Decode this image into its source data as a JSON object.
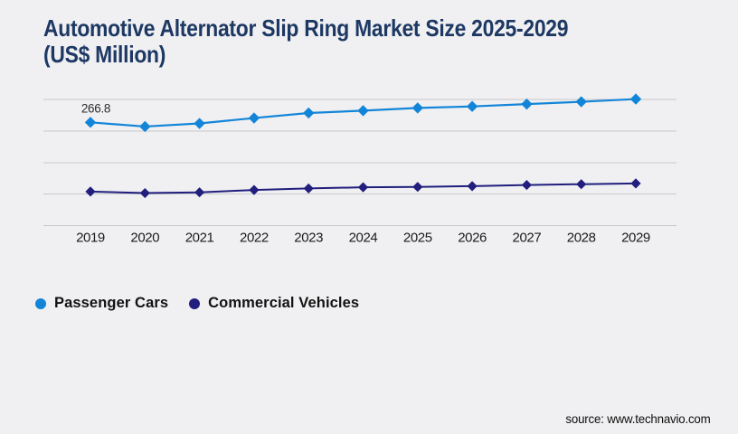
{
  "page": {
    "background_color": "#f0f0f2"
  },
  "header": {
    "title_line1": "Automotive Alternator Slip Ring Market Size 2025-2029",
    "title_line2": "(US$ Million)",
    "title_color": "#1d3863"
  },
  "chart_data": {
    "type": "line",
    "title": "Automotive Alternator Slip Ring Market Size 2025-2029 (US$ Million)",
    "categories": [
      "2019",
      "2020",
      "2021",
      "2022",
      "2023",
      "2024",
      "2025",
      "2026",
      "2027",
      "2028",
      "2029"
    ],
    "series": [
      {
        "name": "Passenger Cars",
        "color": "#1385d8",
        "marker": "diamond",
        "values": [
          266.8,
          256,
          264,
          278,
          291,
          297,
          304,
          308,
          314,
          320,
          327
        ]
      },
      {
        "name": "Commercial Vehicles",
        "color": "#211e7d",
        "marker": "diamond",
        "values": [
          88,
          84,
          86,
          92,
          96,
          99,
          100,
          102,
          105,
          107,
          109
        ]
      }
    ],
    "data_labels": [
      {
        "series": 0,
        "index": 0,
        "text": "266.8"
      }
    ],
    "xlabel": "",
    "ylabel": "",
    "ylim": [
      0,
      340
    ],
    "y_axis_labels_visible": false,
    "grid": {
      "horizontal": true,
      "vertical": false,
      "line_count": 5,
      "color": "#c8c8cb"
    },
    "legend_position": "bottom-left"
  },
  "footer": {
    "source_text": "source: www.technavio.com"
  }
}
